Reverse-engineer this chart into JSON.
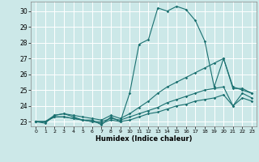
{
  "title": "",
  "xlabel": "Humidex (Indice chaleur)",
  "ylabel": "",
  "xlim": [
    -0.5,
    23.5
  ],
  "ylim": [
    22.7,
    30.6
  ],
  "yticks": [
    23,
    24,
    25,
    26,
    27,
    28,
    29,
    30
  ],
  "xticks": [
    0,
    1,
    2,
    3,
    4,
    5,
    6,
    7,
    8,
    9,
    10,
    11,
    12,
    13,
    14,
    15,
    16,
    17,
    18,
    19,
    20,
    21,
    22,
    23
  ],
  "bg_color": "#cce8e8",
  "grid_color": "#ffffff",
  "line_color": "#1a7070",
  "lines": [
    {
      "x": [
        0,
        1,
        2,
        3,
        4,
        5,
        6,
        7,
        8,
        9,
        10,
        11,
        12,
        13,
        14,
        15,
        16,
        17,
        18,
        19,
        20,
        21,
        22,
        23
      ],
      "y": [
        23.0,
        22.9,
        23.4,
        23.5,
        23.3,
        23.1,
        23.1,
        22.8,
        23.3,
        23.0,
        24.8,
        27.9,
        28.2,
        30.2,
        30.0,
        30.3,
        30.1,
        29.4,
        28.1,
        25.2,
        27.0,
        25.1,
        25.1,
        24.8
      ]
    },
    {
      "x": [
        0,
        1,
        2,
        3,
        4,
        5,
        6,
        7,
        8,
        9,
        10,
        11,
        12,
        13,
        14,
        15,
        16,
        17,
        18,
        19,
        20,
        21,
        22,
        23
      ],
      "y": [
        23.0,
        23.0,
        23.4,
        23.5,
        23.4,
        23.3,
        23.2,
        23.1,
        23.4,
        23.2,
        23.5,
        23.9,
        24.3,
        24.8,
        25.2,
        25.5,
        25.8,
        26.1,
        26.4,
        26.7,
        27.0,
        25.2,
        25.0,
        24.8
      ]
    },
    {
      "x": [
        0,
        1,
        2,
        3,
        4,
        5,
        6,
        7,
        8,
        9,
        10,
        11,
        12,
        13,
        14,
        15,
        16,
        17,
        18,
        19,
        20,
        21,
        22,
        23
      ],
      "y": [
        23.0,
        23.0,
        23.3,
        23.3,
        23.2,
        23.1,
        23.0,
        23.0,
        23.2,
        23.1,
        23.3,
        23.5,
        23.7,
        23.9,
        24.2,
        24.4,
        24.6,
        24.8,
        25.0,
        25.1,
        25.2,
        24.0,
        24.8,
        24.5
      ]
    },
    {
      "x": [
        0,
        1,
        2,
        3,
        4,
        5,
        6,
        7,
        8,
        9,
        10,
        11,
        12,
        13,
        14,
        15,
        16,
        17,
        18,
        19,
        20,
        21,
        22,
        23
      ],
      "y": [
        23.0,
        23.0,
        23.3,
        23.3,
        23.2,
        23.1,
        23.0,
        22.9,
        23.1,
        23.0,
        23.1,
        23.3,
        23.5,
        23.6,
        23.8,
        24.0,
        24.1,
        24.3,
        24.4,
        24.5,
        24.7,
        24.0,
        24.5,
        24.3
      ]
    }
  ]
}
